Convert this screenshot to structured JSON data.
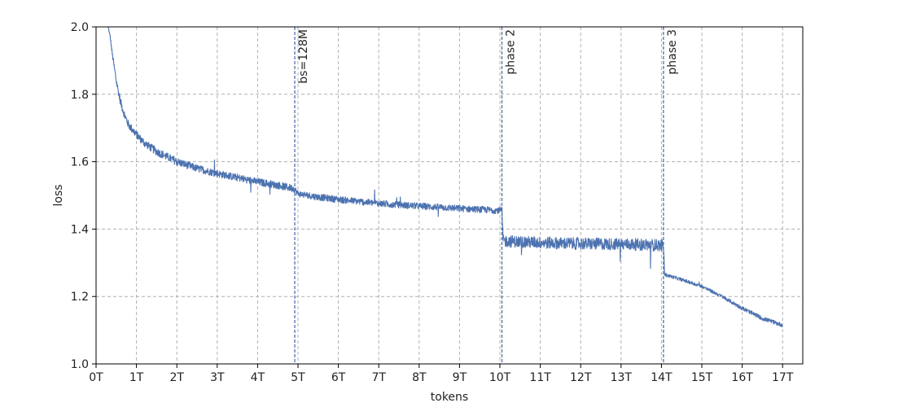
{
  "chart_data": {
    "type": "line",
    "title": "",
    "xlabel": "tokens",
    "ylabel": "loss",
    "xlim": [
      0,
      17.5
    ],
    "ylim": [
      1.0,
      2.0
    ],
    "grid": true,
    "x_unit_suffix": "T",
    "x_ticks": [
      0,
      1,
      2,
      3,
      4,
      5,
      6,
      7,
      8,
      9,
      10,
      11,
      12,
      13,
      14,
      15,
      16,
      17
    ],
    "x_tick_labels": [
      "0T",
      "1T",
      "2T",
      "3T",
      "4T",
      "5T",
      "6T",
      "7T",
      "8T",
      "9T",
      "10T",
      "11T",
      "12T",
      "13T",
      "14T",
      "15T",
      "16T",
      "17T"
    ],
    "y_ticks": [
      1.0,
      1.2,
      1.4,
      1.6,
      1.8,
      2.0
    ],
    "y_tick_labels": [
      "1.0",
      "1.2",
      "1.4",
      "1.6",
      "1.8",
      "2.0"
    ],
    "series": [
      {
        "color": "#4c72b0",
        "x": [
          0.3,
          0.35,
          0.4,
          0.5,
          0.6,
          0.7,
          0.8,
          1.0,
          1.2,
          1.5,
          2.0,
          2.5,
          3.0,
          3.5,
          4.0,
          4.5,
          4.9,
          5.0,
          5.5,
          6.0,
          6.5,
          7.0,
          7.5,
          8.0,
          8.5,
          9.0,
          9.5,
          10.05,
          10.08,
          10.5,
          11.0,
          11.5,
          12.0,
          12.5,
          13.0,
          13.5,
          14.0,
          14.05,
          14.08,
          14.5,
          15.0,
          15.5,
          16.0,
          16.5,
          17.0
        ],
        "y": [
          2.0,
          1.97,
          1.92,
          1.84,
          1.78,
          1.74,
          1.71,
          1.68,
          1.655,
          1.63,
          1.6,
          1.58,
          1.565,
          1.553,
          1.54,
          1.53,
          1.52,
          1.505,
          1.495,
          1.488,
          1.482,
          1.476,
          1.472,
          1.468,
          1.465,
          1.461,
          1.458,
          1.455,
          1.365,
          1.362,
          1.36,
          1.358,
          1.357,
          1.356,
          1.355,
          1.354,
          1.352,
          1.35,
          1.265,
          1.25,
          1.23,
          1.2,
          1.165,
          1.135,
          1.115
        ],
        "noise": [
          0.003,
          0.005,
          0.008,
          0.012,
          0.012,
          0.012,
          0.012,
          0.012,
          0.012,
          0.012,
          0.012,
          0.011,
          0.011,
          0.011,
          0.011,
          0.011,
          0.011,
          0.01,
          0.01,
          0.01,
          0.01,
          0.01,
          0.01,
          0.01,
          0.01,
          0.01,
          0.01,
          0.01,
          0.018,
          0.018,
          0.018,
          0.018,
          0.018,
          0.018,
          0.018,
          0.018,
          0.018,
          0.018,
          0.005,
          0.005,
          0.005,
          0.005,
          0.006,
          0.006,
          0.006
        ]
      }
    ],
    "vlines": [
      {
        "x": 4.92,
        "label": "bs=128M",
        "color": "#4c72b0"
      },
      {
        "x": 10.05,
        "label": "phase 2",
        "color": "#4c72b0"
      },
      {
        "x": 14.05,
        "label": "phase 3",
        "color": "#4c72b0"
      }
    ]
  }
}
